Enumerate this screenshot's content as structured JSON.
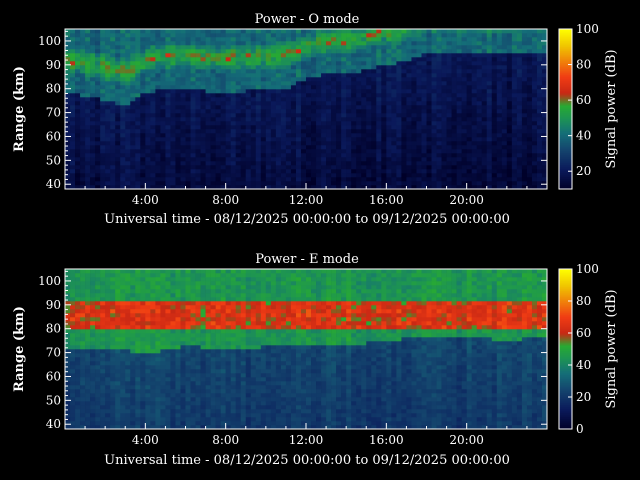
{
  "chart_data": [
    {
      "type": "heatmap",
      "title": "Power - O mode",
      "xlabel": "Universal time - 08/12/2025 00:00:00 to 09/12/2025 00:00:00",
      "ylabel": "Range (km)",
      "colorbar_label": "Signal power (dB)",
      "x_unit": "hours UT",
      "xlim": [
        0,
        24
      ],
      "ylim": [
        38,
        105
      ],
      "x_ticks": [
        4,
        8,
        12,
        16,
        20
      ],
      "x_tick_labels": [
        "4:00",
        "8:00",
        "12:00",
        "16:00",
        "20:00"
      ],
      "y_ticks": [
        40,
        50,
        60,
        70,
        80,
        90,
        100
      ],
      "y_tick_labels": [
        "40",
        "50",
        "60",
        "70",
        "80",
        "90",
        "100"
      ],
      "clim": [
        10,
        100
      ],
      "colorbar_ticks": [
        20,
        40,
        60,
        80,
        100
      ],
      "colorbar_tick_labels": [
        "20",
        "40",
        "60",
        "80",
        "100"
      ],
      "layer_boundary_km": [
        [
          0,
          78
        ],
        [
          1,
          77
        ],
        [
          2,
          75
        ],
        [
          3,
          73
        ],
        [
          4,
          78
        ],
        [
          5,
          80
        ],
        [
          6,
          80
        ],
        [
          7,
          79
        ],
        [
          8,
          79
        ],
        [
          9,
          79
        ],
        [
          10,
          80
        ],
        [
          11,
          80
        ],
        [
          12,
          84
        ],
        [
          13,
          86
        ],
        [
          14,
          86
        ],
        [
          15,
          88
        ],
        [
          16,
          90
        ],
        [
          17,
          92
        ],
        [
          18,
          95
        ],
        [
          19,
          95
        ],
        [
          20,
          95
        ],
        [
          21,
          95
        ],
        [
          22,
          95
        ],
        [
          23,
          95
        ],
        [
          24,
          95
        ]
      ],
      "power_above_layer_db": 40,
      "power_below_layer_db": 20,
      "peak_power_db": 62
    },
    {
      "type": "heatmap",
      "title": "Power - E mode",
      "xlabel": "Universal time - 08/12/2025 00:00:00 to 09/12/2025 00:00:00",
      "ylabel": "Range (km)",
      "colorbar_label": "Signal power (dB)",
      "x_unit": "hours UT",
      "xlim": [
        0,
        24
      ],
      "ylim": [
        38,
        105
      ],
      "x_ticks": [
        4,
        8,
        12,
        16,
        20
      ],
      "x_tick_labels": [
        "4:00",
        "8:00",
        "12:00",
        "16:00",
        "20:00"
      ],
      "y_ticks": [
        40,
        50,
        60,
        70,
        80,
        90,
        100
      ],
      "y_tick_labels": [
        "40",
        "50",
        "60",
        "70",
        "80",
        "90",
        "100"
      ],
      "clim": [
        0,
        100
      ],
      "colorbar_ticks": [
        0,
        20,
        40,
        60,
        80,
        100
      ],
      "colorbar_tick_labels": [
        "0",
        "20",
        "40",
        "60",
        "80",
        "100"
      ],
      "layer_boundary_km": [
        [
          0,
          72
        ],
        [
          1,
          72
        ],
        [
          2,
          71
        ],
        [
          3,
          71
        ],
        [
          4,
          70
        ],
        [
          5,
          71
        ],
        [
          6,
          73
        ],
        [
          7,
          72
        ],
        [
          8,
          71
        ],
        [
          9,
          71
        ],
        [
          10,
          73
        ],
        [
          11,
          74
        ],
        [
          12,
          74
        ],
        [
          13,
          74
        ],
        [
          14,
          73
        ],
        [
          15,
          74
        ],
        [
          16,
          75
        ],
        [
          17,
          76
        ],
        [
          18,
          77
        ],
        [
          19,
          77
        ],
        [
          20,
          76
        ],
        [
          21,
          76
        ],
        [
          22,
          75
        ],
        [
          23,
          76
        ],
        [
          24,
          76
        ]
      ],
      "peak_band_km": [
        80,
        92
      ],
      "power_above_layer_db": 45,
      "power_below_layer_db": 25,
      "peak_power_db": 68
    }
  ]
}
